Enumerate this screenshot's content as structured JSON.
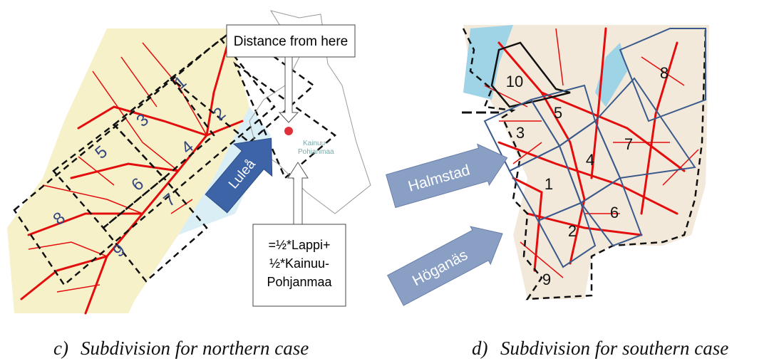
{
  "figures": [
    {
      "label": "c)",
      "caption": "Subdivision for northern case",
      "annotations": {
        "distance": "Distance from here",
        "region": [
          "Kainuu-",
          "Pohjanmaa"
        ],
        "city": "Luleå",
        "formula": [
          "=½*Lappi+",
          "½*Kainuu-",
          "Pohjanmaa"
        ]
      },
      "regions": [
        1,
        2,
        3,
        4,
        5,
        6,
        7,
        8,
        9
      ]
    },
    {
      "label": "d)",
      "caption": "Subdivision for southern case",
      "annotations": {
        "cities": [
          "Halmstad",
          "Höganäs"
        ]
      },
      "regions": [
        1,
        2,
        3,
        4,
        5,
        6,
        7,
        8,
        9,
        10
      ]
    }
  ]
}
